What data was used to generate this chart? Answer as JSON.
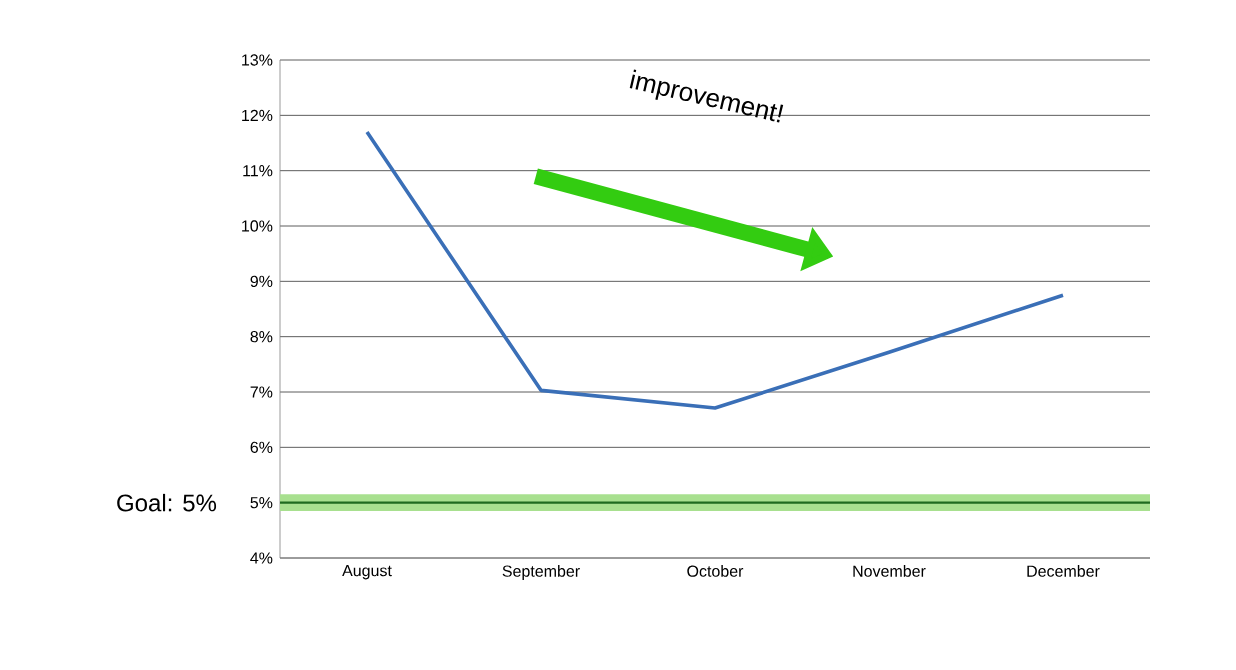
{
  "chart_data": {
    "type": "line",
    "categories": [
      "August",
      "September",
      "October",
      "November",
      "December"
    ],
    "series": [
      {
        "color": "#3a6fb7",
        "values": [
          11.7,
          7.03,
          6.71,
          7.72,
          8.75
        ]
      }
    ],
    "ylim": [
      4,
      13
    ],
    "yticks": [
      {
        "value": 4,
        "label": "4%"
      },
      {
        "value": 5,
        "label": "5%"
      },
      {
        "value": 6,
        "label": "6%"
      },
      {
        "value": 7,
        "label": "7%"
      },
      {
        "value": 8,
        "label": "8%"
      },
      {
        "value": 9,
        "label": "9%"
      },
      {
        "value": 10,
        "label": "10%"
      },
      {
        "value": 11,
        "label": "11%"
      },
      {
        "value": 12,
        "label": "12%"
      },
      {
        "value": 13,
        "label": "13%"
      }
    ],
    "grid": "y",
    "marker": "none",
    "line_style": "solid",
    "ref_lines": [
      {
        "axis": "y",
        "value": 5,
        "label": "Goal: 5%",
        "color": "#1f6b1f"
      }
    ],
    "bands": [
      {
        "axis": "y",
        "from": 4.85,
        "to": 5.15,
        "color": "#a8e08f"
      }
    ],
    "annotations": [
      "improvement!"
    ]
  }
}
